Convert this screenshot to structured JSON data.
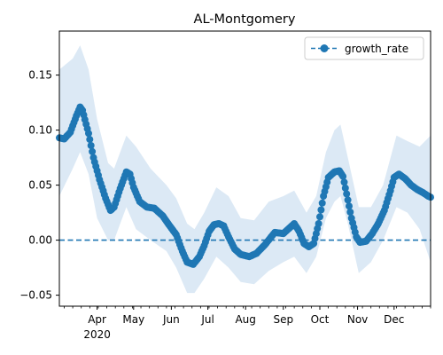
{
  "chart_data": {
    "type": "line",
    "title": "AL-Montgomery",
    "xlabel": "",
    "ylabel": "",
    "x_axis": {
      "range": [
        "2020-03-01",
        "2020-12-31"
      ],
      "major_ticks": [
        {
          "date": "2020-04-01",
          "label": "Apr"
        },
        {
          "date": "2020-05-01",
          "label": "May"
        },
        {
          "date": "2020-06-01",
          "label": "Jun"
        },
        {
          "date": "2020-07-01",
          "label": "Jul"
        },
        {
          "date": "2020-08-01",
          "label": "Aug"
        },
        {
          "date": "2020-09-01",
          "label": "Sep"
        },
        {
          "date": "2020-10-01",
          "label": "Oct"
        },
        {
          "date": "2020-11-01",
          "label": "Nov"
        },
        {
          "date": "2020-12-01",
          "label": "Dec"
        }
      ],
      "year_label": "2020",
      "minor_ticks": "weekly"
    },
    "y_axis": {
      "range": [
        -0.06,
        0.19
      ],
      "ticks": [
        -0.05,
        0.0,
        0.05,
        0.1,
        0.15
      ],
      "tick_labels": [
        "−0.05",
        "0.00",
        "0.05",
        "0.10",
        "0.15"
      ]
    },
    "grid": false,
    "legend": {
      "placement": "top-right",
      "entries": [
        "growth_rate"
      ]
    },
    "reference_line": {
      "y": 0.0,
      "style": "dashed"
    },
    "colors": {
      "line": "#1f77b4",
      "band": "#dce9f5"
    },
    "series": [
      {
        "name": "growth_rate",
        "marker": "circle",
        "keypoints": [
          [
            "2020-03-01",
            0.093
          ],
          [
            "2020-03-05",
            0.092
          ],
          [
            "2020-03-10",
            0.098
          ],
          [
            "2020-03-15",
            0.113
          ],
          [
            "2020-03-18",
            0.121
          ],
          [
            "2020-03-20",
            0.118
          ],
          [
            "2020-03-25",
            0.097
          ],
          [
            "2020-03-29",
            0.075
          ],
          [
            "2020-04-03",
            0.055
          ],
          [
            "2020-04-08",
            0.038
          ],
          [
            "2020-04-12",
            0.027
          ],
          [
            "2020-04-15",
            0.03
          ],
          [
            "2020-04-20",
            0.047
          ],
          [
            "2020-04-25",
            0.062
          ],
          [
            "2020-04-28",
            0.06
          ],
          [
            "2020-05-01",
            0.048
          ],
          [
            "2020-05-06",
            0.035
          ],
          [
            "2020-05-12",
            0.03
          ],
          [
            "2020-05-18",
            0.029
          ],
          [
            "2020-05-25",
            0.022
          ],
          [
            "2020-05-30",
            0.014
          ],
          [
            "2020-06-05",
            0.005
          ],
          [
            "2020-06-10",
            -0.01
          ],
          [
            "2020-06-14",
            -0.02
          ],
          [
            "2020-06-19",
            -0.022
          ],
          [
            "2020-06-24",
            -0.015
          ],
          [
            "2020-06-28",
            -0.005
          ],
          [
            "2020-07-02",
            0.008
          ],
          [
            "2020-07-06",
            0.014
          ],
          [
            "2020-07-10",
            0.015
          ],
          [
            "2020-07-14",
            0.013
          ],
          [
            "2020-07-18",
            0.003
          ],
          [
            "2020-07-23",
            -0.008
          ],
          [
            "2020-07-28",
            -0.013
          ],
          [
            "2020-08-04",
            -0.015
          ],
          [
            "2020-08-10",
            -0.012
          ],
          [
            "2020-08-17",
            -0.004
          ],
          [
            "2020-08-25",
            0.007
          ],
          [
            "2020-09-01",
            0.006
          ],
          [
            "2020-09-05",
            0.01
          ],
          [
            "2020-09-10",
            0.015
          ],
          [
            "2020-09-14",
            0.008
          ],
          [
            "2020-09-18",
            -0.003
          ],
          [
            "2020-09-22",
            -0.006
          ],
          [
            "2020-09-26",
            -0.003
          ],
          [
            "2020-09-30",
            0.015
          ],
          [
            "2020-10-04",
            0.04
          ],
          [
            "2020-10-08",
            0.057
          ],
          [
            "2020-10-13",
            0.062
          ],
          [
            "2020-10-17",
            0.063
          ],
          [
            "2020-10-20",
            0.058
          ],
          [
            "2020-10-23",
            0.042
          ],
          [
            "2020-10-27",
            0.02
          ],
          [
            "2020-10-31",
            0.003
          ],
          [
            "2020-11-03",
            -0.002
          ],
          [
            "2020-11-08",
            -0.001
          ],
          [
            "2020-11-13",
            0.006
          ],
          [
            "2020-11-18",
            0.015
          ],
          [
            "2020-11-23",
            0.027
          ],
          [
            "2020-11-28",
            0.045
          ],
          [
            "2020-12-01",
            0.057
          ],
          [
            "2020-12-05",
            0.06
          ],
          [
            "2020-12-10",
            0.056
          ],
          [
            "2020-12-15",
            0.05
          ],
          [
            "2020-12-20",
            0.046
          ],
          [
            "2020-12-25",
            0.043
          ],
          [
            "2020-12-29",
            0.04
          ],
          [
            "2020-12-31",
            0.039
          ]
        ]
      }
    ],
    "confidence_band": [
      [
        "2020-03-01",
        0.04,
        0.155
      ],
      [
        "2020-03-12",
        0.065,
        0.165
      ],
      [
        "2020-03-18",
        0.08,
        0.177
      ],
      [
        "2020-03-25",
        0.06,
        0.155
      ],
      [
        "2020-04-01",
        0.02,
        0.11
      ],
      [
        "2020-04-10",
        0.0,
        0.07
      ],
      [
        "2020-04-15",
        0.0,
        0.065
      ],
      [
        "2020-04-25",
        0.03,
        0.095
      ],
      [
        "2020-05-03",
        0.01,
        0.085
      ],
      [
        "2020-05-15",
        0.0,
        0.065
      ],
      [
        "2020-05-28",
        -0.01,
        0.05
      ],
      [
        "2020-06-05",
        -0.025,
        0.038
      ],
      [
        "2020-06-14",
        -0.048,
        0.015
      ],
      [
        "2020-06-20",
        -0.048,
        0.01
      ],
      [
        "2020-06-28",
        -0.035,
        0.025
      ],
      [
        "2020-07-08",
        -0.015,
        0.048
      ],
      [
        "2020-07-18",
        -0.025,
        0.04
      ],
      [
        "2020-07-28",
        -0.038,
        0.02
      ],
      [
        "2020-08-08",
        -0.04,
        0.018
      ],
      [
        "2020-08-20",
        -0.028,
        0.035
      ],
      [
        "2020-09-01",
        -0.02,
        0.04
      ],
      [
        "2020-09-10",
        -0.015,
        0.045
      ],
      [
        "2020-09-20",
        -0.03,
        0.025
      ],
      [
        "2020-09-28",
        -0.015,
        0.04
      ],
      [
        "2020-10-06",
        0.02,
        0.08
      ],
      [
        "2020-10-13",
        0.035,
        0.1
      ],
      [
        "2020-10-18",
        0.04,
        0.105
      ],
      [
        "2020-10-24",
        0.015,
        0.075
      ],
      [
        "2020-11-02",
        -0.03,
        0.03
      ],
      [
        "2020-11-12",
        -0.02,
        0.03
      ],
      [
        "2020-11-22",
        0.0,
        0.05
      ],
      [
        "2020-12-03",
        0.03,
        0.095
      ],
      [
        "2020-12-12",
        0.025,
        0.09
      ],
      [
        "2020-12-22",
        0.01,
        0.085
      ],
      [
        "2020-12-31",
        -0.02,
        0.095
      ]
    ]
  }
}
